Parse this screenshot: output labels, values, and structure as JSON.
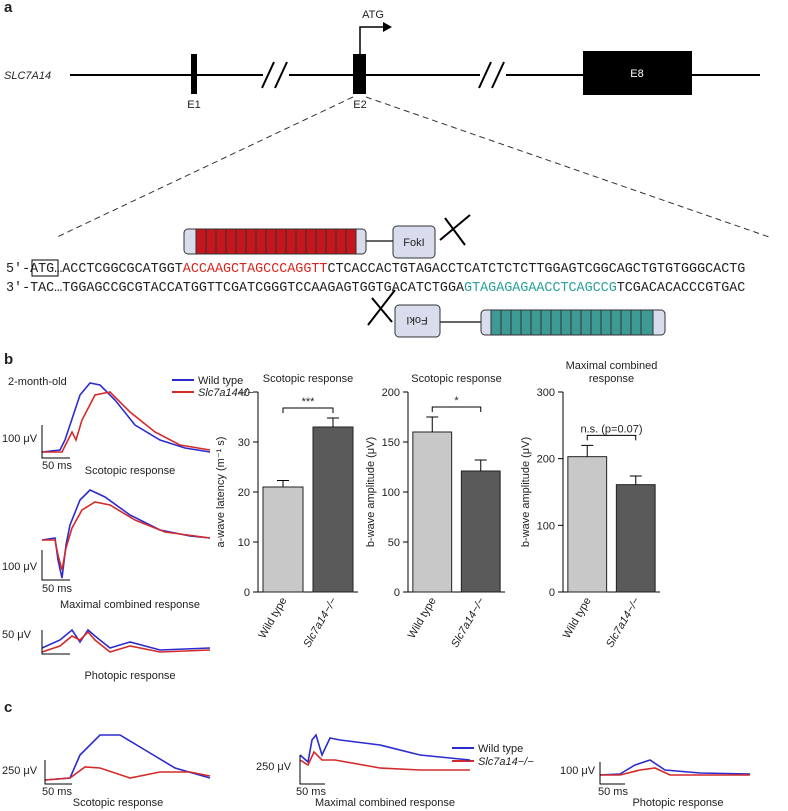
{
  "panel_labels": [
    "a",
    "b",
    "c"
  ],
  "gene_diagram": {
    "gene": "SLC7A14",
    "start_codon": "ATG",
    "exons": [
      "E1",
      "E2",
      "E8"
    ],
    "nuclease": [
      "FokI",
      "FokI"
    ],
    "seq_top": [
      "5′-",
      "ATG",
      "…ACCTCGGCGCATGGT",
      "ACCAAGCTAGCCCAGGTT",
      "CTCACCACTGTAGACCTCATCTCTCTTGGAGTCGGCAGCTGTGTGGGCACTG"
    ],
    "seq_bottom": [
      "3′-TAC…TGGAGCCGCGTACCATGGTTCGATCGGGTCCAAGAGTGGTGACATCTGGA",
      "GTAGAGAGAACCTCAGCCG",
      "TCGACACACCCGTGAC"
    ]
  },
  "panel_b": {
    "age": "2-month-old",
    "legend": [
      "Wild type",
      "Slc7a14−/−"
    ],
    "traces": [
      {
        "amplitude": "100 μV",
        "time": "50 ms",
        "label": "Scotopic response"
      },
      {
        "amplitude": "100 μV",
        "time": "50 ms",
        "label": "Maximal combined response"
      },
      {
        "amplitude": "50 μV",
        "time": "50 ms",
        "label": "Photopic response"
      }
    ]
  },
  "chart_data": [
    {
      "type": "bar",
      "title": "Scotopic response",
      "y_label": "a-wave latency (m⁻¹ s)",
      "categories": [
        "Wild type",
        "Slc7a14−/−"
      ],
      "values": [
        21,
        33
      ],
      "errors": [
        1.3,
        1.8
      ],
      "colors": [
        "#c8c8c8",
        "#5a5a5a"
      ],
      "ylim": [
        0,
        40
      ],
      "yticks": [
        0,
        10,
        20,
        30,
        40
      ],
      "significance": "***"
    },
    {
      "type": "bar",
      "title": "Scotopic response",
      "y_label": "b-wave amplitude (μV)",
      "categories": [
        "Wild type",
        "Slc7a14−/−"
      ],
      "values": [
        160,
        121
      ],
      "errors": [
        15,
        11
      ],
      "colors": [
        "#c8c8c8",
        "#5a5a5a"
      ],
      "ylim": [
        0,
        200
      ],
      "yticks": [
        0,
        50,
        100,
        150,
        200
      ],
      "significance": "*"
    },
    {
      "type": "bar",
      "title": "Maximal combined response",
      "y_label": "b-wave amplitude (μV)",
      "categories": [
        "Wild type",
        "Slc7a14−/−"
      ],
      "values": [
        203,
        161
      ],
      "errors": [
        17,
        13
      ],
      "colors": [
        "#c8c8c8",
        "#5a5a5a"
      ],
      "ylim": [
        0,
        300
      ],
      "yticks": [
        0,
        100,
        200,
        300
      ],
      "significance": "n.s. (p=0.07)"
    }
  ],
  "panel_c": {
    "legend": [
      "Wild type",
      "Slc7a14−/−"
    ],
    "traces": [
      {
        "amplitude": "250 μV",
        "time": "50 ms",
        "label": "Scotopic response"
      },
      {
        "amplitude": "250 μV",
        "time": "50 ms",
        "label": "Maximal combined response"
      },
      {
        "amplitude": "100 μV",
        "time": "50 ms",
        "label": "Photopic response"
      }
    ]
  }
}
